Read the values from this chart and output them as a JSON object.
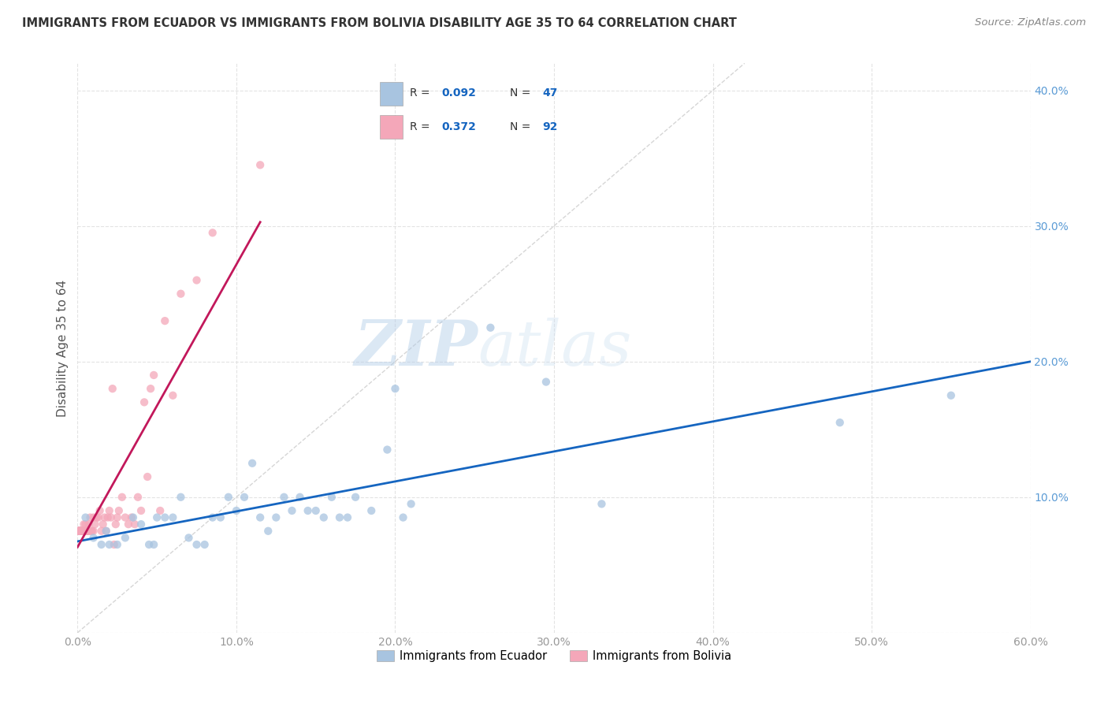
{
  "title": "IMMIGRANTS FROM ECUADOR VS IMMIGRANTS FROM BOLIVIA DISABILITY AGE 35 TO 64 CORRELATION CHART",
  "source": "Source: ZipAtlas.com",
  "ylabel": "Disability Age 35 to 64",
  "xlim": [
    0.0,
    0.6
  ],
  "ylim": [
    0.0,
    0.42
  ],
  "xticks": [
    0.0,
    0.1,
    0.2,
    0.3,
    0.4,
    0.5,
    0.6
  ],
  "yticks": [
    0.0,
    0.1,
    0.2,
    0.3,
    0.4
  ],
  "legend_labels": [
    "Immigrants from Ecuador",
    "Immigrants from Bolivia"
  ],
  "ecuador_R": 0.092,
  "ecuador_N": 47,
  "bolivia_R": 0.372,
  "bolivia_N": 92,
  "ecuador_color": "#a8c4e0",
  "bolivia_color": "#f4a7b9",
  "ecuador_trend_color": "#1565c0",
  "bolivia_trend_color": "#c2185b",
  "diagonal_color": "#cccccc",
  "watermark_zip": "ZIP",
  "watermark_atlas": "atlas",
  "ecuador_x": [
    0.55,
    0.48,
    0.33,
    0.295,
    0.26,
    0.21,
    0.205,
    0.2,
    0.195,
    0.185,
    0.175,
    0.17,
    0.165,
    0.16,
    0.155,
    0.15,
    0.145,
    0.14,
    0.135,
    0.13,
    0.125,
    0.12,
    0.115,
    0.11,
    0.105,
    0.1,
    0.095,
    0.09,
    0.085,
    0.08,
    0.075,
    0.07,
    0.065,
    0.06,
    0.055,
    0.05,
    0.048,
    0.045,
    0.04,
    0.035,
    0.03,
    0.025,
    0.02,
    0.018,
    0.015,
    0.01,
    0.005
  ],
  "ecuador_y": [
    0.175,
    0.155,
    0.095,
    0.185,
    0.225,
    0.095,
    0.085,
    0.18,
    0.135,
    0.09,
    0.1,
    0.085,
    0.085,
    0.1,
    0.085,
    0.09,
    0.09,
    0.1,
    0.09,
    0.1,
    0.085,
    0.075,
    0.085,
    0.125,
    0.1,
    0.09,
    0.1,
    0.085,
    0.085,
    0.065,
    0.065,
    0.07,
    0.1,
    0.085,
    0.085,
    0.085,
    0.065,
    0.065,
    0.08,
    0.085,
    0.07,
    0.065,
    0.065,
    0.075,
    0.065,
    0.07,
    0.085
  ],
  "bolivia_x": [
    0.115,
    0.085,
    0.075,
    0.065,
    0.06,
    0.055,
    0.052,
    0.048,
    0.046,
    0.044,
    0.042,
    0.04,
    0.038,
    0.036,
    0.034,
    0.032,
    0.03,
    0.028,
    0.026,
    0.025,
    0.024,
    0.023,
    0.022,
    0.021,
    0.02,
    0.019,
    0.018,
    0.017,
    0.016,
    0.015,
    0.014,
    0.013,
    0.012,
    0.011,
    0.01,
    0.01,
    0.009,
    0.009,
    0.008,
    0.008,
    0.007,
    0.007,
    0.006,
    0.006,
    0.006,
    0.005,
    0.005,
    0.005,
    0.004,
    0.004,
    0.004,
    0.004,
    0.003,
    0.003,
    0.003,
    0.003,
    0.003,
    0.002,
    0.002,
    0.002,
    0.002,
    0.002,
    0.002,
    0.002,
    0.001,
    0.001,
    0.001,
    0.001,
    0.001,
    0.001,
    0.001,
    0.001,
    0.001,
    0.001,
    0.001,
    0.001,
    0.001,
    0.001,
    0.001,
    0.001,
    0.001,
    0.001,
    0.001,
    0.001,
    0.001,
    0.001,
    0.001,
    0.001,
    0.001,
    0.001,
    0.001,
    0.001
  ],
  "bolivia_y": [
    0.345,
    0.295,
    0.26,
    0.25,
    0.175,
    0.23,
    0.09,
    0.19,
    0.18,
    0.115,
    0.17,
    0.09,
    0.1,
    0.08,
    0.085,
    0.08,
    0.085,
    0.1,
    0.09,
    0.085,
    0.08,
    0.065,
    0.18,
    0.085,
    0.09,
    0.085,
    0.075,
    0.085,
    0.08,
    0.075,
    0.09,
    0.085,
    0.085,
    0.08,
    0.085,
    0.075,
    0.075,
    0.075,
    0.085,
    0.075,
    0.08,
    0.075,
    0.075,
    0.075,
    0.075,
    0.075,
    0.08,
    0.075,
    0.075,
    0.075,
    0.075,
    0.08,
    0.075,
    0.075,
    0.075,
    0.075,
    0.075,
    0.075,
    0.075,
    0.075,
    0.075,
    0.075,
    0.075,
    0.075,
    0.075,
    0.075,
    0.075,
    0.075,
    0.075,
    0.075,
    0.075,
    0.075,
    0.075,
    0.075,
    0.075,
    0.075,
    0.075,
    0.075,
    0.075,
    0.075,
    0.075,
    0.075,
    0.075,
    0.075,
    0.075,
    0.075,
    0.075,
    0.075,
    0.075,
    0.075,
    0.075,
    0.075
  ]
}
